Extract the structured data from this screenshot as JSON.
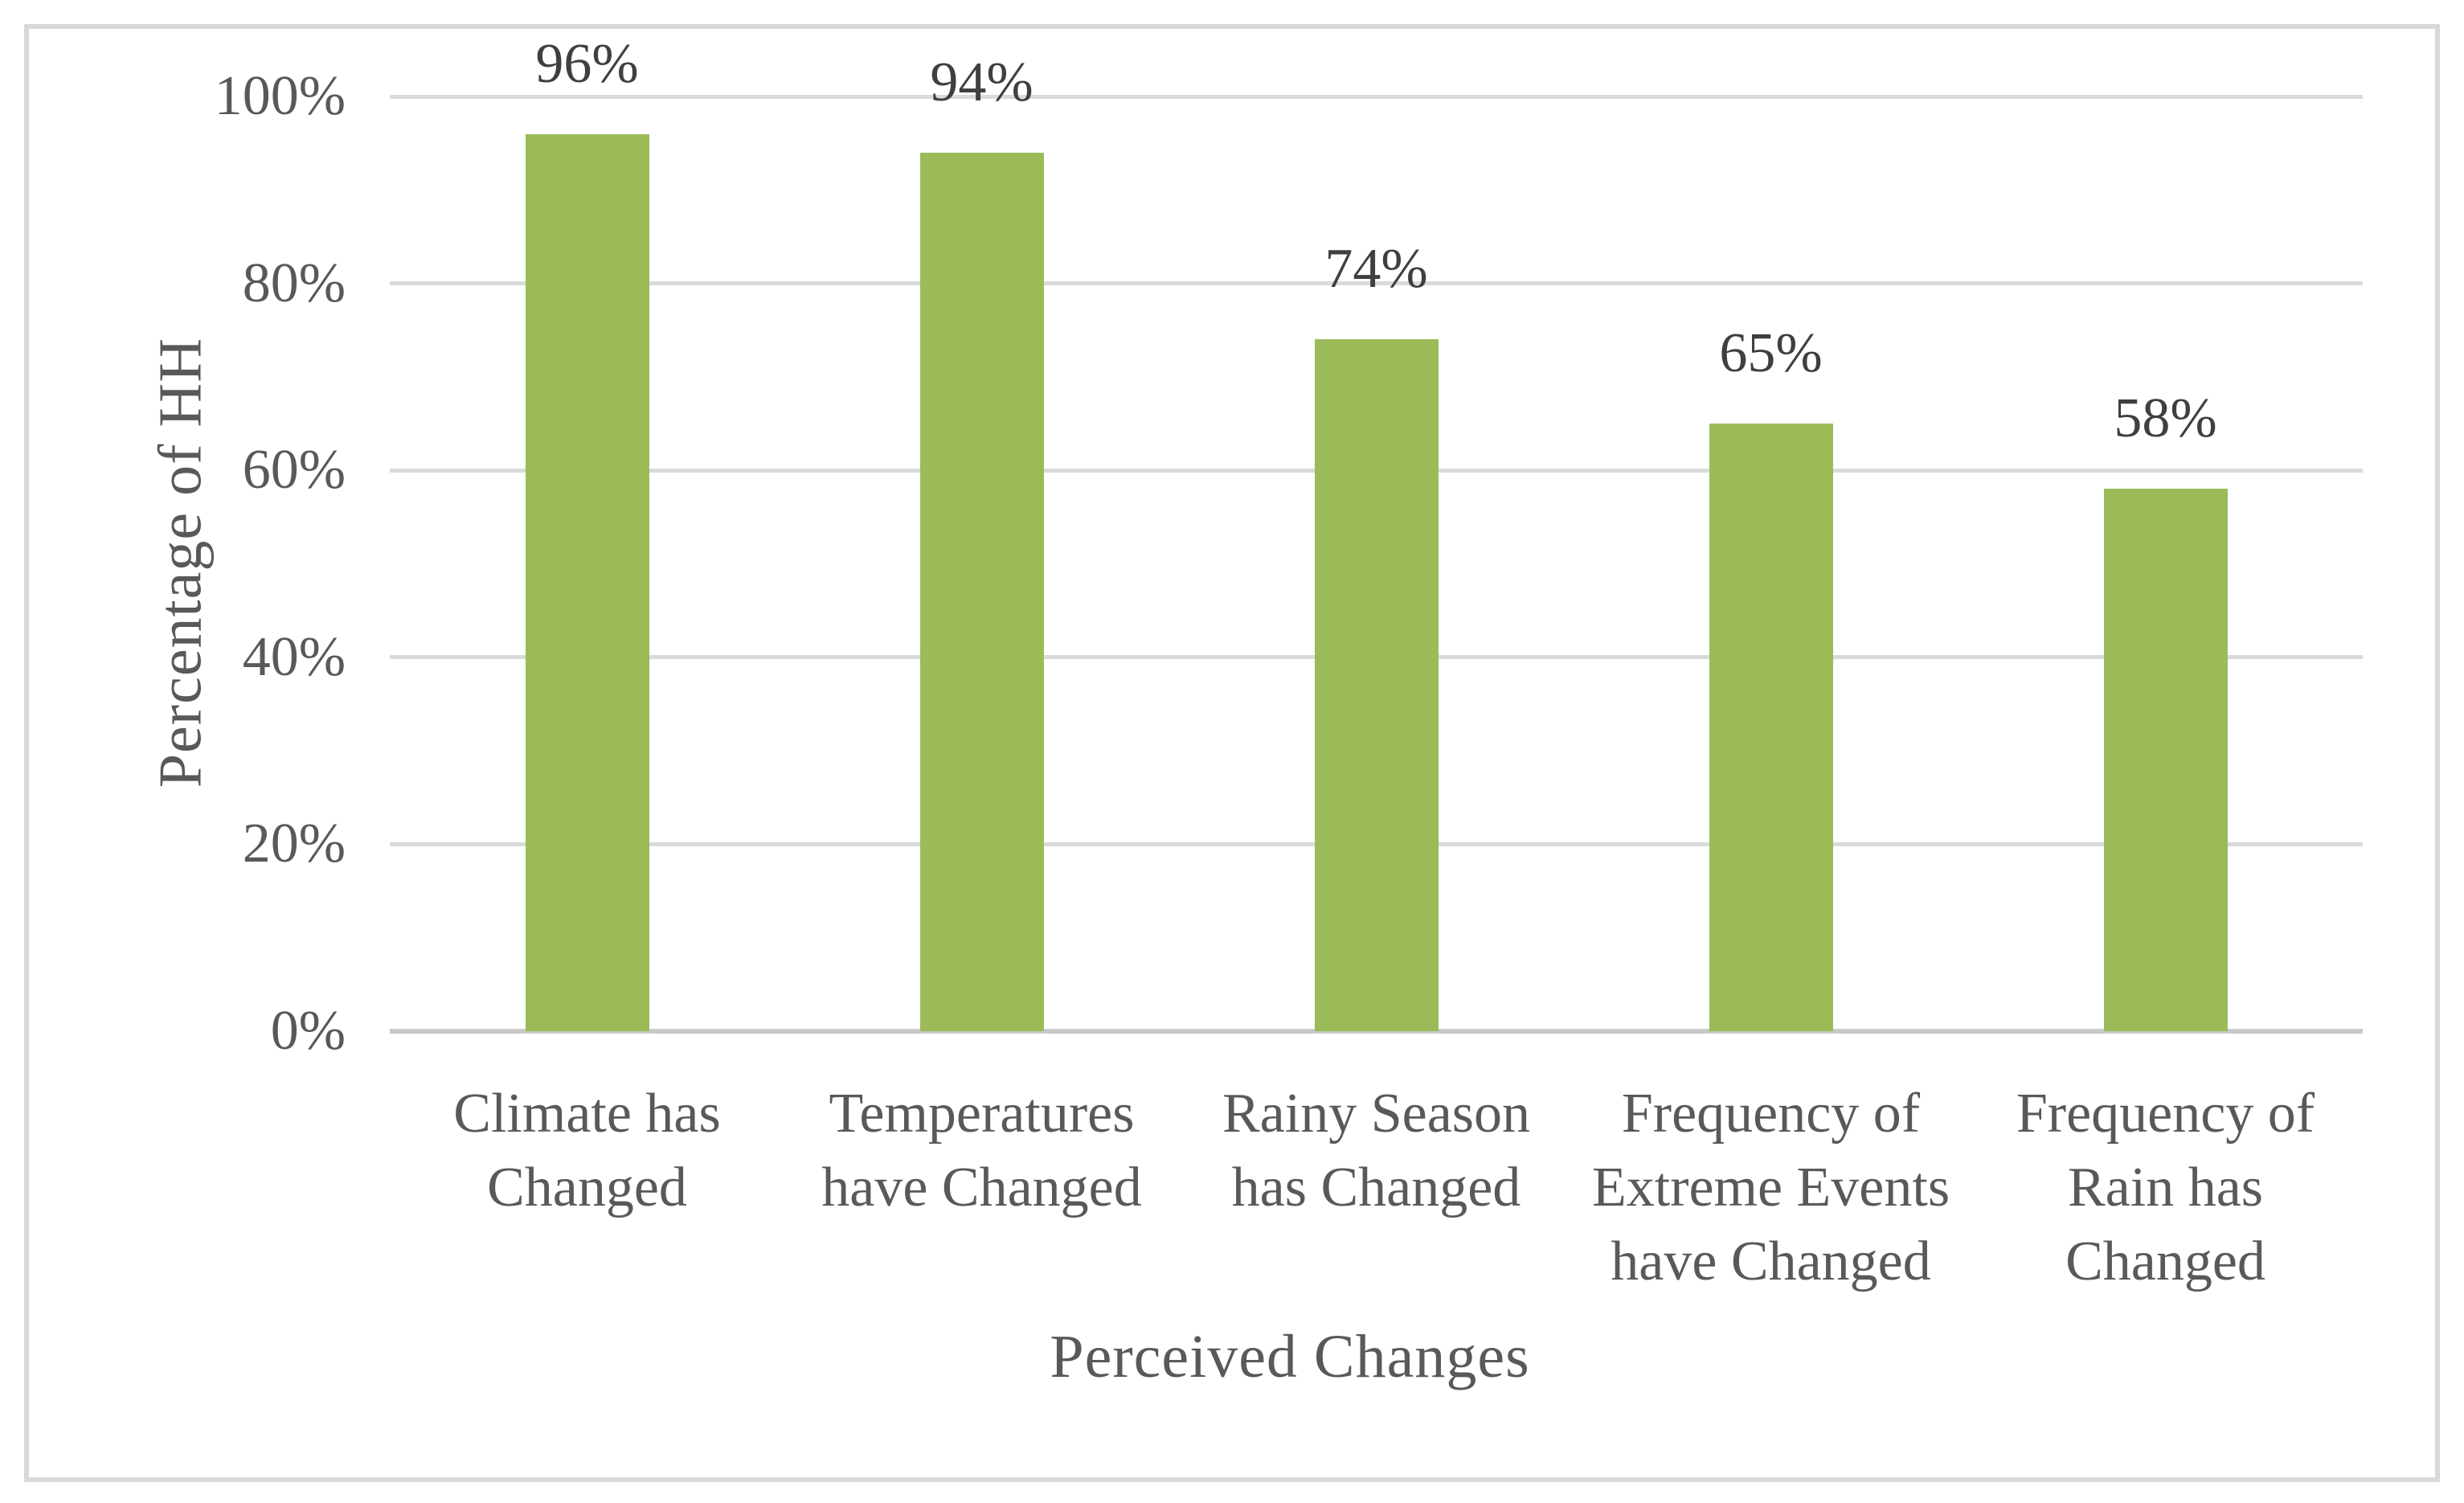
{
  "chart_data": {
    "type": "bar",
    "title": "",
    "categories": [
      "Climate has Changed",
      "Temperatures have Changed",
      "Rainy Season has Changed",
      "Frequency of Extreme Events have Changed",
      "Frequency of Rain has Changed"
    ],
    "values": [
      96,
      94,
      74,
      65,
      58
    ],
    "data_labels": [
      "96%",
      "94%",
      "74%",
      "65%",
      "58%"
    ],
    "xlabel": "Perceived Changes",
    "ylabel": "Percentage of HH",
    "ylim": [
      0,
      100
    ],
    "yticks": [
      0,
      20,
      40,
      60,
      80,
      100
    ],
    "ytick_labels": [
      "0%",
      "20%",
      "40%",
      "60%",
      "80%",
      "100%"
    ],
    "grid": "horizontal-only",
    "legend": "none",
    "colors": {
      "bar": "#9bbb59",
      "gridline": "#dadada",
      "axis_line": "#c9c9c9",
      "axis_text": "#595959",
      "data_label_text": "#3f3f3f",
      "frame_border": "#d9d9d9",
      "background": "#ffffff"
    }
  }
}
